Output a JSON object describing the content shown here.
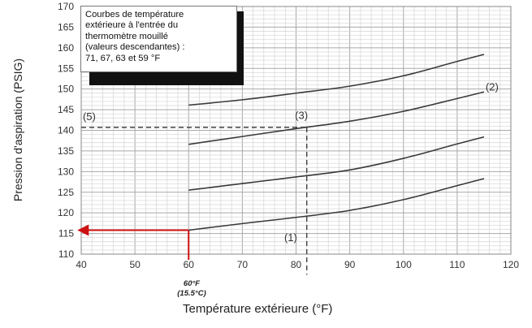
{
  "chart_data": {
    "type": "line",
    "title": "",
    "xlabel": "Température extérieure (°F)",
    "ylabel": "Pression d'aspiration (PSIG)",
    "xlim": [
      40,
      120
    ],
    "ylim": [
      110,
      170
    ],
    "x_ticks": [
      "40",
      "50",
      "60",
      "70",
      "80",
      "90",
      "100",
      "110",
      "120"
    ],
    "y_ticks": [
      "110",
      "115",
      "120",
      "125",
      "130",
      "135",
      "140",
      "145",
      "150",
      "155",
      "160",
      "165",
      "170"
    ],
    "grid": true,
    "note_lines": [
      "Courbes de température",
      "extérieure à l'entrée du",
      "thermomètre mouillé",
      "(valeurs descendantes) :",
      "71, 67, 63 et 59 °F"
    ],
    "series": [
      {
        "values": [
          [
            60,
            146.1
          ],
          [
            70,
            147.4
          ],
          [
            80,
            149.0
          ],
          [
            90,
            150.7
          ],
          [
            100,
            153.2
          ],
          [
            110,
            156.7
          ],
          [
            115,
            158.4
          ]
        ]
      },
      {
        "values": [
          [
            60,
            136.6
          ],
          [
            70,
            138.5
          ],
          [
            80,
            140.4
          ],
          [
            90,
            142.2
          ],
          [
            100,
            144.6
          ],
          [
            110,
            147.7
          ],
          [
            115,
            149.3
          ]
        ]
      },
      {
        "values": [
          [
            60,
            125.5
          ],
          [
            70,
            127.1
          ],
          [
            80,
            128.7
          ],
          [
            90,
            130.4
          ],
          [
            100,
            133.2
          ],
          [
            110,
            136.7
          ],
          [
            115,
            138.4
          ]
        ]
      },
      {
        "values": [
          [
            60,
            115.8
          ],
          [
            70,
            117.4
          ],
          [
            80,
            118.9
          ],
          [
            90,
            120.6
          ],
          [
            100,
            123.2
          ],
          [
            110,
            126.6
          ],
          [
            115,
            128.3
          ]
        ]
      }
    ],
    "annotations": [
      {
        "text": "(1)",
        "x": 79,
        "y": 113.1
      },
      {
        "text": "(2)",
        "x": 116.5,
        "y": 149.6
      },
      {
        "text": "(3)",
        "x": 81,
        "y": 142.8
      },
      {
        "text": "(5)",
        "x": 41.5,
        "y": 142.5
      }
    ],
    "reference_lines": [
      {
        "kind": "horizontal",
        "y": 140.7,
        "x_from": 40,
        "x_to": 82,
        "style": "dashed",
        "color": "#333333"
      },
      {
        "kind": "vertical",
        "x": 82,
        "y_from": 140.7,
        "y_to": 105,
        "style": "dashed",
        "color": "#333333"
      },
      {
        "kind": "vertical",
        "x": 60,
        "y_from": 115.8,
        "y_to": 108.6,
        "style": "solid",
        "color": "#cc1111"
      },
      {
        "kind": "horizontal-arrow",
        "y": 115.8,
        "x_from": 60,
        "x_to": 39.5,
        "style": "solid",
        "color": "#cc1111"
      }
    ],
    "marker_60": {
      "line1": "60°F",
      "line2": "(15.5°C)"
    }
  }
}
